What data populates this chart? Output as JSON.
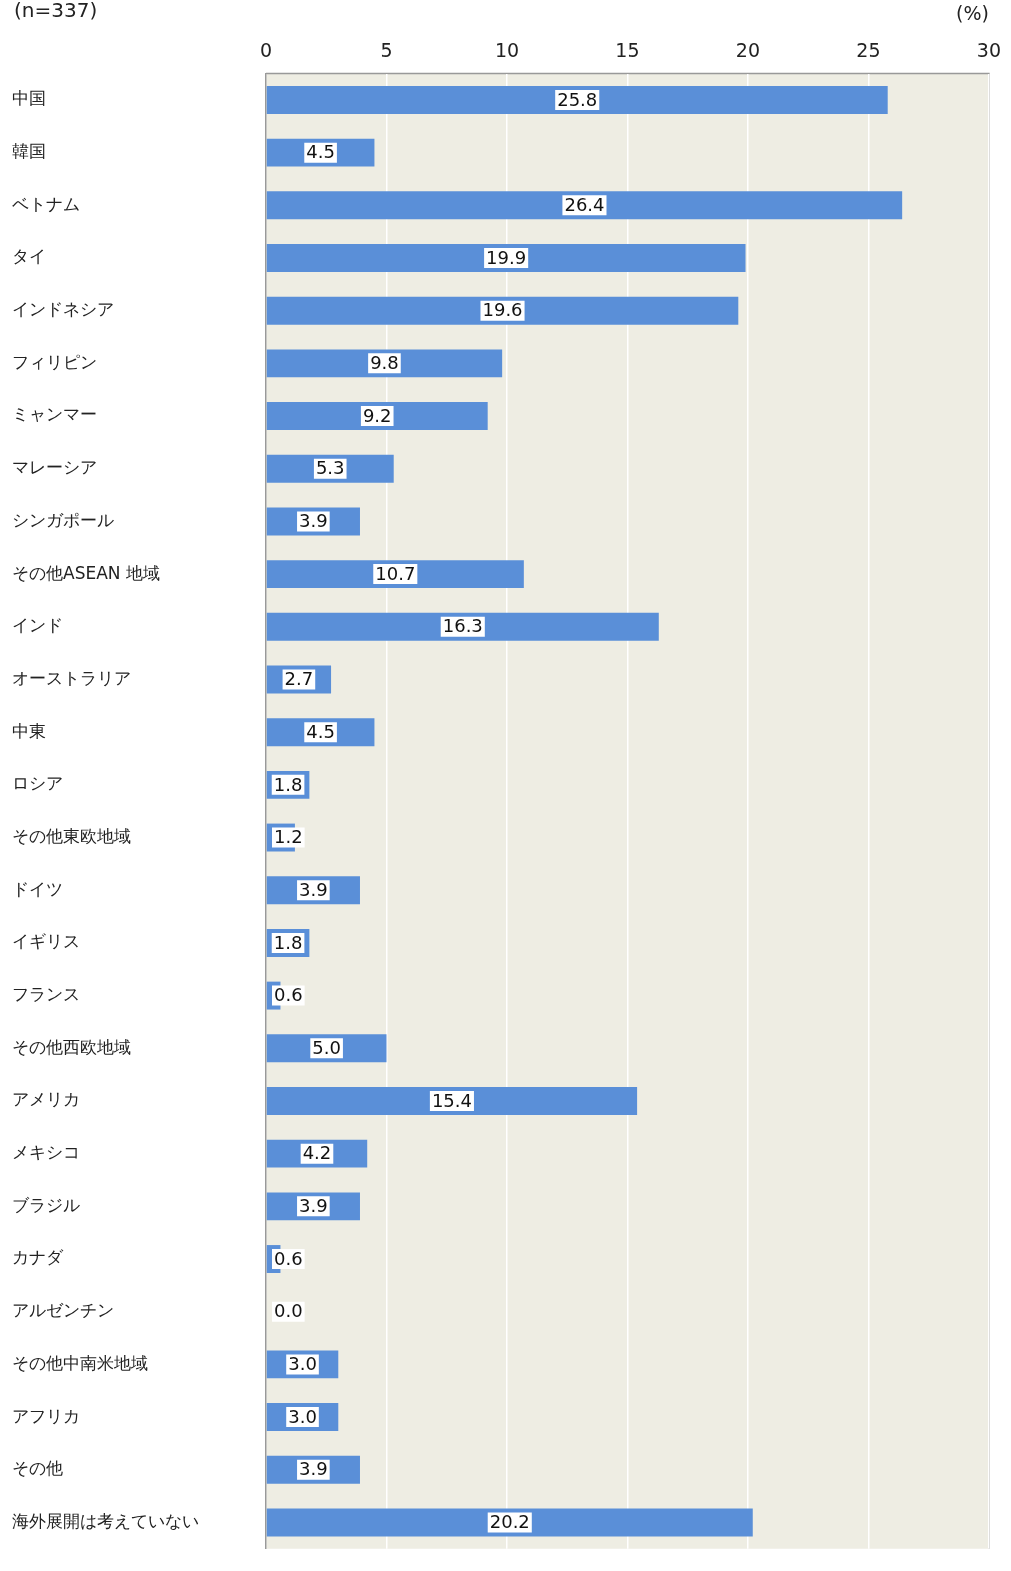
{
  "chart_data": {
    "type": "bar",
    "orientation": "horizontal",
    "annotations": [
      "(n=337)"
    ],
    "xlabel": "(%)",
    "categories": [
      "中国",
      "韓国",
      "ベトナム",
      "タイ",
      "インドネシア",
      "フィリピン",
      "ミャンマー",
      "マレーシア",
      "シンガポール",
      "その他ASEAN 地域",
      "インド",
      "オーストラリア",
      "中東",
      "ロシア",
      "その他東欧地域",
      "ドイツ",
      "イギリス",
      "フランス",
      "その他西欧地域",
      "アメリカ",
      "メキシコ",
      "ブラジル",
      "カナダ",
      "アルゼンチン",
      "その他中南米地域",
      "アフリカ",
      "その他",
      "海外展開は考えていない"
    ],
    "values": [
      25.8,
      4.5,
      26.4,
      19.9,
      19.6,
      9.8,
      9.2,
      5.3,
      3.9,
      10.7,
      16.3,
      2.7,
      4.5,
      1.8,
      1.2,
      3.9,
      1.8,
      0.6,
      5.0,
      15.4,
      4.2,
      3.9,
      0.6,
      0.0,
      3.0,
      3.0,
      3.9,
      20.2
    ],
    "value_labels": [
      "25.8",
      "4.5",
      "26.4",
      "19.9",
      "19.6",
      "9.8",
      "9.2",
      "5.3",
      "3.9",
      "10.7",
      "16.3",
      "2.7",
      "4.5",
      "1.8",
      "1.2",
      "3.9",
      "1.8",
      "0.6",
      "5.0",
      "15.4",
      "4.2",
      "3.9",
      "0.6",
      "0.0",
      "3.0",
      "3.0",
      "3.9",
      "20.2"
    ],
    "color": "#5a8fd8",
    "xlim": [
      0,
      30
    ],
    "xticks": [
      0,
      5,
      10,
      15,
      20,
      25,
      30
    ],
    "grid": "x",
    "legend": false
  }
}
